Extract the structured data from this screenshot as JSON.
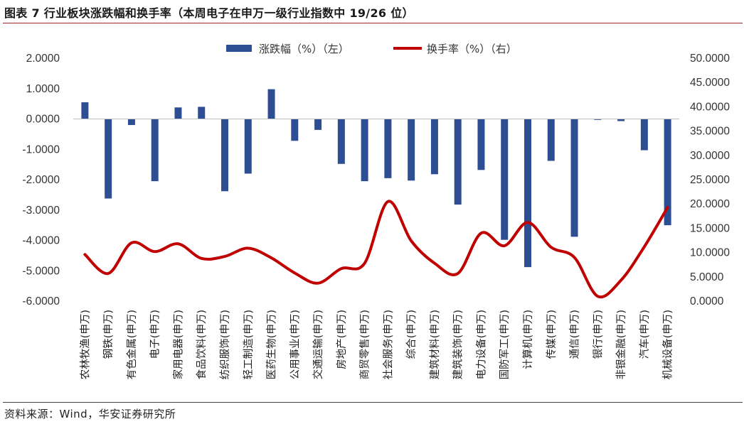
{
  "title": "图表 7 行业板块涨跌幅和换手率（本周电子在申万一级行业指数中 19/26 位）",
  "source": "资料来源：Wind，华安证券研究所",
  "colors": {
    "bar": "#2e4e94",
    "line": "#c00000",
    "title_rule": "#9a2a2a"
  },
  "chart_data": {
    "type": "bar",
    "categories": [
      "农林牧渔(申万)",
      "钢铁(申万)",
      "有色金属(申万)",
      "电子(申万)",
      "家用电器(申万)",
      "食品饮料(申万)",
      "纺织服饰(申万)",
      "轻工制造(申万)",
      "医药生物(申万)",
      "公用事业(申万)",
      "交通运输(申万)",
      "房地产(申万)",
      "商贸零售(申万)",
      "社会服务(申万)",
      "综合(申万)",
      "建筑材料(申万)",
      "建筑装饰(申万)",
      "电力设备(申万)",
      "国防军工(申万)",
      "计算机(申万)",
      "传媒(申万)",
      "通信(申万)",
      "银行(申万)",
      "非银金融(申万)",
      "汽车(申万)",
      "机械设备(申万)"
    ],
    "series": [
      {
        "name": "涨跌幅（%）（左）",
        "type": "bar",
        "axis": "left",
        "values": [
          0.55,
          -2.62,
          -0.2,
          -2.05,
          0.38,
          0.4,
          -2.38,
          -1.8,
          0.98,
          -0.72,
          -0.36,
          -1.48,
          -2.05,
          -1.95,
          -2.03,
          -1.82,
          -2.82,
          -1.68,
          -3.98,
          -4.88,
          -1.38,
          -3.88,
          -0.03,
          -0.07,
          -1.03,
          -3.5
        ]
      },
      {
        "name": "换手率（%）（右）",
        "type": "line",
        "axis": "right",
        "values": [
          9.6,
          5.7,
          12.0,
          10.2,
          11.8,
          8.8,
          9.2,
          10.9,
          8.9,
          5.8,
          3.7,
          6.7,
          7.8,
          20.5,
          12.4,
          7.8,
          5.7,
          14.0,
          11.4,
          16.2,
          11.1,
          9.0,
          1.0,
          4.3,
          11.2,
          19.3
        ]
      }
    ],
    "left_axis": {
      "ylim": [
        -6,
        2
      ],
      "ticks": [
        2,
        1,
        0,
        -1,
        -2,
        -3,
        -4,
        -5,
        -6
      ],
      "tick_labels": [
        "2.0000",
        "1.0000",
        "0.0000",
        "-1.0000",
        "-2.0000",
        "-3.0000",
        "-4.0000",
        "-5.0000",
        "-6.0000"
      ]
    },
    "right_axis": {
      "ylim": [
        0,
        50
      ],
      "ticks": [
        50,
        45,
        40,
        35,
        30,
        25,
        20,
        15,
        10,
        5,
        0
      ],
      "tick_labels": [
        "50.0000",
        "45.0000",
        "40.0000",
        "35.0000",
        "30.0000",
        "25.0000",
        "20.0000",
        "15.0000",
        "10.0000",
        "5.0000",
        "0.0000"
      ]
    },
    "legend": {
      "position": "top-center",
      "entries": [
        "涨跌幅（%）（左）",
        "换手率（%）（右）"
      ]
    },
    "grid": false
  }
}
